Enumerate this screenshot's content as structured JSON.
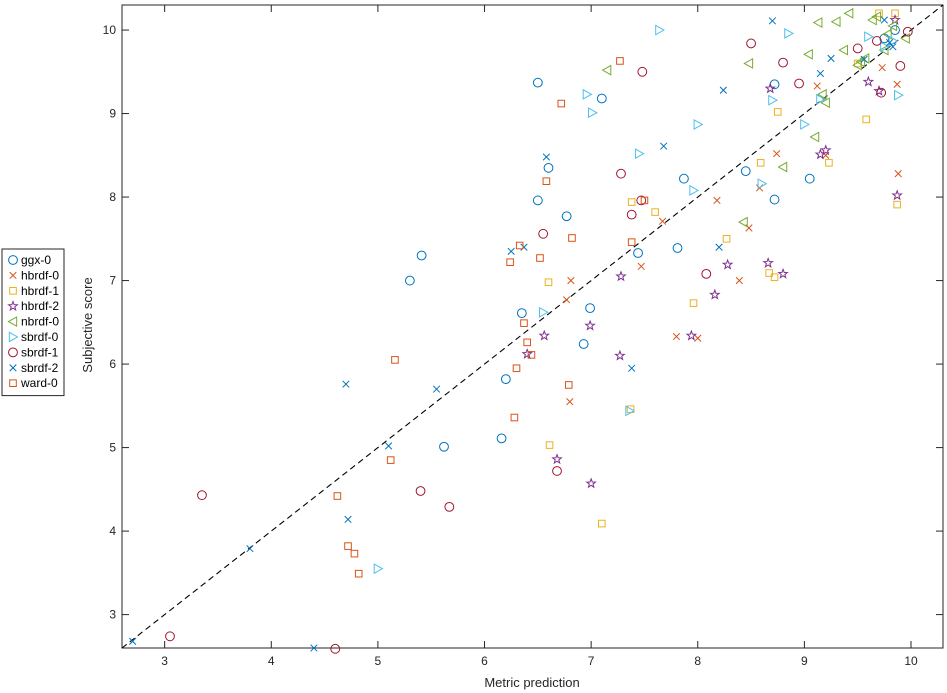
{
  "chart_data": {
    "type": "scatter",
    "xlabel": "Metric prediction",
    "ylabel": "Subjective score",
    "xlim": [
      2.6,
      10.3
    ],
    "ylim": [
      2.6,
      10.3
    ],
    "xticks": [
      3,
      4,
      5,
      6,
      7,
      8,
      9,
      10
    ],
    "yticks": [
      3,
      4,
      5,
      6,
      7,
      8,
      9,
      10
    ],
    "grid": false,
    "legend_position": "outside-left",
    "reference_line": {
      "type": "identity",
      "style": "dashed",
      "color": "#000000"
    },
    "series": [
      {
        "name": "ggx-0",
        "marker": "circle",
        "color": "#0072BD",
        "points": [
          [
            6.5,
            9.37
          ],
          [
            7.1,
            9.18
          ],
          [
            6.6,
            8.35
          ],
          [
            6.5,
            7.96
          ],
          [
            6.77,
            7.77
          ],
          [
            5.41,
            7.3
          ],
          [
            5.3,
            7.0
          ],
          [
            6.35,
            6.61
          ],
          [
            6.99,
            6.67
          ],
          [
            6.93,
            6.24
          ],
          [
            6.2,
            5.82
          ],
          [
            5.62,
            5.01
          ],
          [
            6.16,
            5.11
          ],
          [
            7.44,
            7.33
          ],
          [
            7.81,
            7.39
          ],
          [
            7.87,
            8.22
          ],
          [
            8.45,
            8.31
          ],
          [
            8.72,
            9.35
          ],
          [
            8.72,
            7.97
          ],
          [
            9.05,
            8.22
          ],
          [
            9.75,
            9.9
          ],
          [
            9.85,
            10.0
          ]
        ]
      },
      {
        "name": "hbrdf-0",
        "marker": "x",
        "color": "#D95319",
        "points": [
          [
            6.81,
            7.0
          ],
          [
            6.77,
            6.77
          ],
          [
            6.8,
            5.55
          ],
          [
            7.47,
            7.17
          ],
          [
            7.67,
            7.71
          ],
          [
            7.8,
            6.33
          ],
          [
            8.0,
            6.31
          ],
          [
            8.18,
            7.96
          ],
          [
            8.39,
            7.0
          ],
          [
            8.48,
            7.63
          ],
          [
            8.58,
            8.11
          ],
          [
            8.74,
            8.52
          ],
          [
            9.12,
            9.33
          ],
          [
            9.2,
            8.5
          ],
          [
            9.73,
            9.55
          ],
          [
            9.87,
            9.35
          ],
          [
            9.88,
            8.28
          ]
        ]
      },
      {
        "name": "hbrdf-1",
        "marker": "square",
        "color": "#EDB120",
        "points": [
          [
            6.6,
            6.98
          ],
          [
            6.61,
            5.03
          ],
          [
            7.1,
            4.09
          ],
          [
            7.37,
            5.46
          ],
          [
            7.38,
            7.94
          ],
          [
            7.6,
            7.82
          ],
          [
            7.96,
            6.73
          ],
          [
            8.27,
            7.5
          ],
          [
            8.59,
            8.41
          ],
          [
            8.67,
            7.09
          ],
          [
            8.72,
            7.04
          ],
          [
            8.75,
            9.02
          ],
          [
            9.23,
            8.41
          ],
          [
            9.58,
            8.93
          ],
          [
            9.5,
            9.6
          ],
          [
            9.7,
            10.2
          ],
          [
            9.87,
            7.91
          ],
          [
            9.85,
            10.2
          ]
        ]
      },
      {
        "name": "hbrdf-2",
        "marker": "star",
        "color": "#7E2F8E",
        "points": [
          [
            6.4,
            6.12
          ],
          [
            6.56,
            6.34
          ],
          [
            6.68,
            4.86
          ],
          [
            6.99,
            6.46
          ],
          [
            7.0,
            4.57
          ],
          [
            7.27,
            6.1
          ],
          [
            7.28,
            7.05
          ],
          [
            7.94,
            6.34
          ],
          [
            8.16,
            6.83
          ],
          [
            8.28,
            7.19
          ],
          [
            8.66,
            7.21
          ],
          [
            8.68,
            9.3
          ],
          [
            8.8,
            7.08
          ],
          [
            9.15,
            8.51
          ],
          [
            9.2,
            8.56
          ],
          [
            9.6,
            9.38
          ],
          [
            9.7,
            9.27
          ],
          [
            9.85,
            10.12
          ],
          [
            9.87,
            8.02
          ]
        ]
      },
      {
        "name": "nbrdf-0",
        "marker": "triangle-left",
        "color": "#77AC30",
        "points": [
          [
            7.15,
            9.52
          ],
          [
            8.43,
            7.7
          ],
          [
            8.48,
            9.6
          ],
          [
            8.8,
            8.36
          ],
          [
            9.04,
            9.71
          ],
          [
            9.1,
            8.72
          ],
          [
            9.13,
            10.09
          ],
          [
            9.17,
            9.23
          ],
          [
            9.2,
            9.13
          ],
          [
            9.3,
            10.1
          ],
          [
            9.37,
            9.76
          ],
          [
            9.42,
            10.2
          ],
          [
            9.5,
            9.58
          ],
          [
            9.53,
            9.62
          ],
          [
            9.57,
            9.66
          ],
          [
            9.64,
            10.12
          ],
          [
            9.68,
            10.16
          ],
          [
            9.75,
            9.76
          ],
          [
            9.78,
            9.95
          ],
          [
            9.83,
            10.05
          ],
          [
            9.95,
            9.9
          ]
        ]
      },
      {
        "name": "sbrdf-0",
        "marker": "triangle-right",
        "color": "#4DBEEE",
        "points": [
          [
            5.0,
            3.55
          ],
          [
            6.55,
            6.62
          ],
          [
            6.96,
            9.23
          ],
          [
            7.01,
            9.01
          ],
          [
            7.36,
            5.44
          ],
          [
            7.45,
            8.52
          ],
          [
            7.64,
            10.0
          ],
          [
            7.96,
            8.08
          ],
          [
            8.0,
            8.87
          ],
          [
            8.6,
            8.16
          ],
          [
            8.7,
            9.16
          ],
          [
            8.85,
            9.96
          ],
          [
            9.0,
            8.87
          ],
          [
            9.15,
            9.17
          ],
          [
            9.6,
            9.92
          ],
          [
            9.75,
            9.8
          ],
          [
            9.83,
            9.87
          ],
          [
            9.88,
            9.22
          ]
        ]
      },
      {
        "name": "sbrdf-1",
        "marker": "circle",
        "color": "#A2142F",
        "points": [
          [
            3.05,
            2.74
          ],
          [
            3.35,
            4.43
          ],
          [
            4.6,
            2.59
          ],
          [
            5.4,
            4.48
          ],
          [
            5.67,
            4.29
          ],
          [
            6.55,
            7.56
          ],
          [
            6.68,
            4.72
          ],
          [
            7.28,
            8.28
          ],
          [
            7.38,
            7.79
          ],
          [
            7.47,
            7.96
          ],
          [
            7.48,
            9.5
          ],
          [
            8.08,
            7.08
          ],
          [
            8.5,
            9.84
          ],
          [
            8.8,
            9.61
          ],
          [
            8.95,
            9.36
          ],
          [
            9.5,
            9.78
          ],
          [
            9.68,
            9.87
          ],
          [
            9.72,
            9.25
          ],
          [
            9.9,
            9.57
          ],
          [
            9.97,
            9.98
          ]
        ]
      },
      {
        "name": "sbrdf-2",
        "marker": "x",
        "color": "#0072BD",
        "points": [
          [
            2.7,
            2.68
          ],
          [
            3.8,
            3.79
          ],
          [
            4.4,
            2.6
          ],
          [
            4.7,
            5.76
          ],
          [
            4.72,
            4.14
          ],
          [
            5.1,
            5.02
          ],
          [
            5.55,
            5.7
          ],
          [
            6.25,
            7.35
          ],
          [
            6.37,
            7.4
          ],
          [
            6.58,
            8.48
          ],
          [
            7.38,
            5.95
          ],
          [
            7.68,
            8.61
          ],
          [
            8.2,
            7.4
          ],
          [
            8.24,
            9.28
          ],
          [
            8.7,
            10.11
          ],
          [
            9.15,
            9.48
          ],
          [
            9.25,
            9.66
          ],
          [
            9.56,
            9.65
          ],
          [
            9.75,
            10.12
          ],
          [
            9.83,
            9.8
          ],
          [
            9.8,
            9.85
          ]
        ]
      },
      {
        "name": "ward-0",
        "marker": "square",
        "color": "#D95319",
        "points": [
          [
            4.62,
            4.42
          ],
          [
            4.72,
            3.82
          ],
          [
            4.78,
            3.73
          ],
          [
            4.82,
            3.49
          ],
          [
            5.12,
            4.85
          ],
          [
            5.16,
            6.05
          ],
          [
            6.24,
            7.22
          ],
          [
            6.28,
            5.36
          ],
          [
            6.3,
            5.95
          ],
          [
            6.33,
            7.42
          ],
          [
            6.37,
            6.49
          ],
          [
            6.4,
            6.26
          ],
          [
            6.44,
            6.11
          ],
          [
            6.52,
            7.27
          ],
          [
            6.58,
            8.19
          ],
          [
            6.72,
            9.12
          ],
          [
            6.79,
            5.75
          ],
          [
            6.82,
            7.51
          ],
          [
            7.27,
            9.63
          ],
          [
            7.38,
            7.46
          ],
          [
            7.5,
            7.96
          ]
        ]
      }
    ]
  }
}
